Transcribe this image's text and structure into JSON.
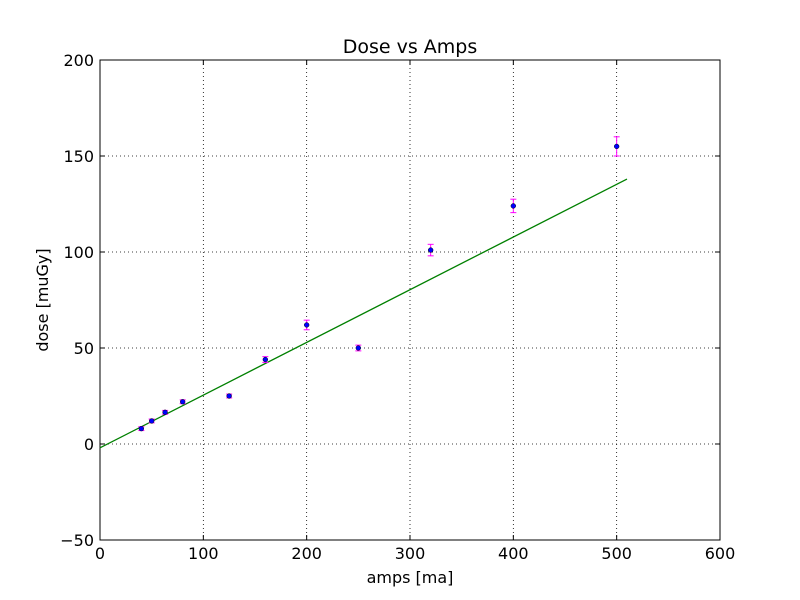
{
  "chart_data": {
    "type": "scatter",
    "title": "Dose vs Amps",
    "xlabel": "amps [ma]",
    "ylabel": "dose [muGy]",
    "xlim": [
      0,
      600
    ],
    "ylim": [
      -50,
      200
    ],
    "xticks": [
      "0",
      "100",
      "200",
      "300",
      "400",
      "500",
      "600"
    ],
    "yticks": [
      "−50",
      "0",
      "50",
      "100",
      "150",
      "200"
    ],
    "xtick_values": [
      0,
      100,
      200,
      300,
      400,
      500,
      600
    ],
    "ytick_values": [
      -50,
      0,
      50,
      100,
      150,
      200
    ],
    "grid": true,
    "points": [
      {
        "x": 40,
        "y": 8,
        "err": 1
      },
      {
        "x": 50,
        "y": 12,
        "err": 1
      },
      {
        "x": 63,
        "y": 16.5,
        "err": 1
      },
      {
        "x": 80,
        "y": 22,
        "err": 1
      },
      {
        "x": 125,
        "y": 25,
        "err": 1
      },
      {
        "x": 160,
        "y": 44,
        "err": 1.5
      },
      {
        "x": 200,
        "y": 62,
        "err": 2.5
      },
      {
        "x": 250,
        "y": 50,
        "err": 1.5
      },
      {
        "x": 320,
        "y": 101,
        "err": 3
      },
      {
        "x": 400,
        "y": 124,
        "err": 3.5
      },
      {
        "x": 500,
        "y": 155,
        "err": 5
      }
    ],
    "fit_line": {
      "x": [
        0,
        510
      ],
      "y": [
        -2,
        138
      ]
    },
    "colors": {
      "points": "#0000ff",
      "errorbars": "#ff00ff",
      "fit": "#008000",
      "grid": "#000000"
    }
  }
}
